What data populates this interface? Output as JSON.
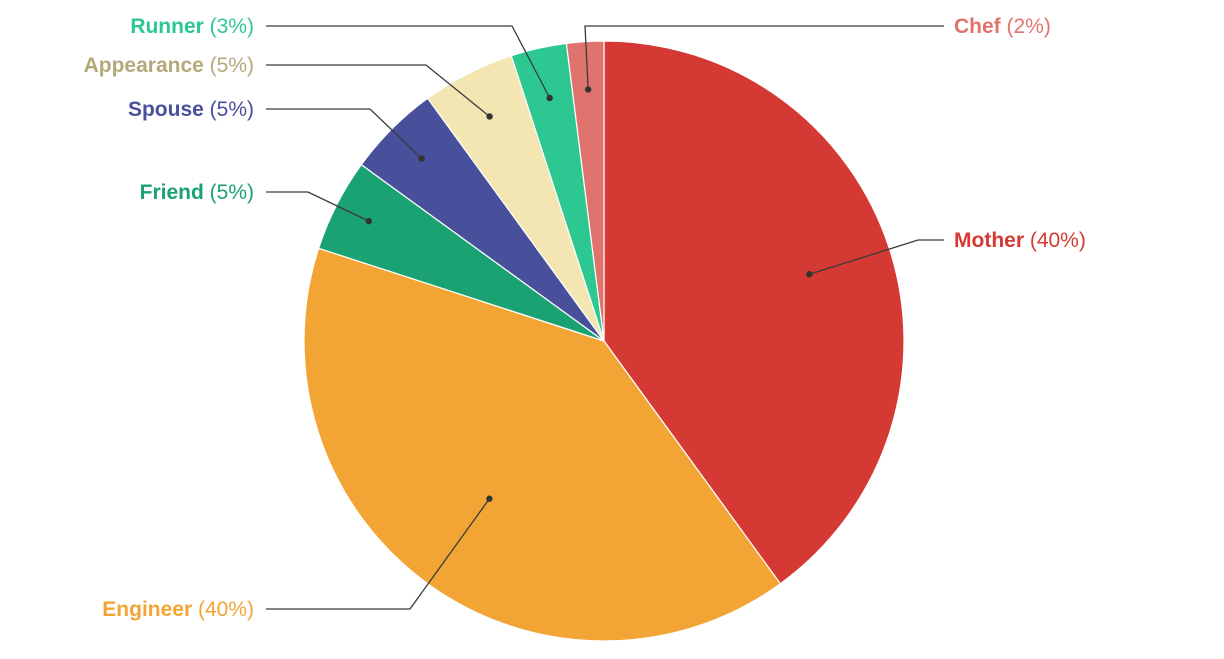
{
  "chart_data": {
    "type": "pie",
    "start_angle_deg": 0,
    "direction": "clockwise",
    "slices": [
      {
        "label": "Mother",
        "value": 40,
        "value_label": "(40%)",
        "color": "#d43a33"
      },
      {
        "label": "Engineer",
        "value": 40,
        "value_label": "(40%)",
        "color": "#f2a535"
      },
      {
        "label": "Friend",
        "value": 5,
        "value_label": "(5%)",
        "color": "#1aa272"
      },
      {
        "label": "Spouse",
        "value": 5,
        "value_label": "(5%)",
        "color": "#48509c"
      },
      {
        "label": "Appearance",
        "value": 5,
        "value_label": "(5%)",
        "color": "#f4e6b2"
      },
      {
        "label": "Runner",
        "value": 3,
        "value_label": "(3%)",
        "color": "#2dc891"
      },
      {
        "label": "Chef",
        "value": 2,
        "value_label": "(2%)",
        "color": "#e0736e"
      }
    ],
    "label_colors": {
      "Mother": "#d43a33",
      "Engineer": "#f2a535",
      "Friend": "#1aa272",
      "Spouse": "#48509c",
      "Appearance": "#b3a97a",
      "Runner": "#2dc891",
      "Chef": "#e0736e"
    }
  }
}
